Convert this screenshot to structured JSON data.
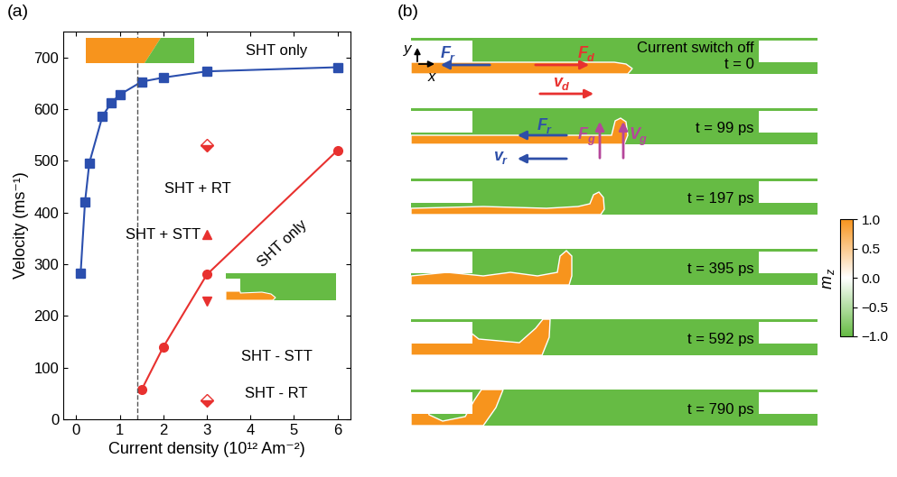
{
  "chart_data": {
    "type": "line",
    "panel": "(a)",
    "x_label": "Current density (10¹² Am⁻²)",
    "y_label": "Velocity (ms⁻¹)",
    "xlim": [
      -0.3,
      6.3
    ],
    "ylim": [
      0,
      750
    ],
    "xticks": [
      0,
      1,
      2,
      3,
      4,
      5,
      6
    ],
    "yticks": [
      0,
      100,
      200,
      300,
      400,
      500,
      600,
      700
    ],
    "threshold_x": 1.4,
    "series": [
      {
        "name": "SHT only",
        "color": "#2b4fae",
        "marker": "square",
        "line_style": "solid",
        "x": [
          0.1,
          0.2,
          0.3,
          0.6,
          0.8,
          1.0,
          1.5,
          2.0,
          3.0,
          6.0
        ],
        "values": [
          283,
          420,
          496,
          586,
          612,
          628,
          653,
          661,
          673,
          681
        ]
      },
      {
        "name": "SHT only",
        "color": "#e8312f",
        "marker": "circle",
        "line_style": "solid",
        "x": [
          1.5,
          2.0,
          3.0,
          6.0
        ],
        "values": [
          57,
          140,
          280,
          520
        ]
      },
      {
        "name": "SHT + RT",
        "color": "#e8312f",
        "marker": "half-diamond",
        "line_style": "none",
        "x": [
          3.0
        ],
        "values": [
          530
        ]
      },
      {
        "name": "SHT + STT",
        "color": "#e8312f",
        "marker": "triangle-up",
        "line_style": "none",
        "x": [
          3.0
        ],
        "values": [
          357
        ]
      },
      {
        "name": "SHT - STT",
        "color": "#e8312f",
        "marker": "triangle-down",
        "line_style": "none",
        "x": [
          3.0
        ],
        "values": [
          228
        ]
      },
      {
        "name": "SHT - RT",
        "color": "#e8312f",
        "marker": "half-diamond",
        "line_style": "none",
        "x": [
          3.0
        ],
        "values": [
          37
        ]
      }
    ]
  },
  "panel_b": {
    "panel": "(b)",
    "axis_labels": {
      "x": "x",
      "y": "y"
    },
    "note": "Current switch off",
    "snapshots": [
      {
        "time": "t = 0",
        "vectors": [
          {
            "base": "F",
            "sub": "r",
            "color": "#2e4fa8",
            "direction": "left"
          },
          {
            "base": "F",
            "sub": "d",
            "color": "#e8312f",
            "direction": "right"
          },
          {
            "base": "v",
            "sub": "d",
            "color": "#e8312f",
            "direction": "right"
          }
        ]
      },
      {
        "time": "t = 99 ps",
        "vectors": [
          {
            "base": "F",
            "sub": "g",
            "color": "#b5469b",
            "direction": "up"
          },
          {
            "base": "V",
            "sub": "g",
            "color": "#b5469b",
            "direction": "up"
          },
          {
            "base": "F",
            "sub": "r",
            "color": "#2e4fa8",
            "direction": "left"
          },
          {
            "base": "v",
            "sub": "r",
            "color": "#2e4fa8",
            "direction": "left"
          }
        ]
      },
      {
        "time": "t = 197 ps"
      },
      {
        "time": "t = 395 ps"
      },
      {
        "time": "t = 592 ps"
      },
      {
        "time": "t = 790 ps"
      }
    ],
    "colorbar": {
      "label": {
        "base": "m",
        "sub": "z"
      },
      "range": [
        -1,
        1
      ],
      "colors": [
        "#66bb44",
        "#ffffff",
        "#f7941d"
      ],
      "ticks": [
        {
          "value": 1,
          "label": "1.0"
        },
        {
          "value": 0.5,
          "label": "0.5"
        },
        {
          "value": 0,
          "label": "0.0"
        },
        {
          "value": -0.5,
          "label": "−0.5"
        },
        {
          "value": -1,
          "label": "−1.0"
        }
      ]
    }
  }
}
